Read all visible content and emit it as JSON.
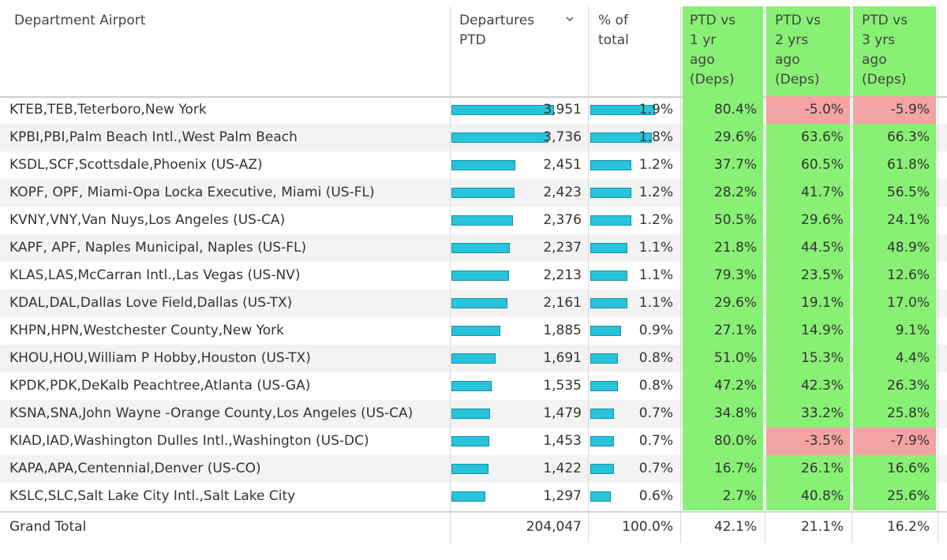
{
  "headers": {
    "airport": "Department Airport",
    "departures": "Departures\nPTD",
    "pct_total": "% of\ntotal",
    "vs1": "PTD vs\n1 yr\nago\n(Deps)",
    "vs2": "PTD vs\n2 yrs\nago\n(Deps)",
    "vs3": "PTD vs\n3 yrs\nago\n(Deps)"
  },
  "sort_icon": "chevron-down-icon",
  "colors": {
    "bar": "#27c4dc",
    "positive": "#88f074",
    "negative": "#f4a3a3"
  },
  "rows": [
    {
      "name": "KTEB,TEB,Teterboro,New York",
      "departures": "3,951",
      "departures_num": 3951,
      "pct": "1.9%",
      "pct_num": 1.9,
      "vs1": "80.4%",
      "vs2": "-5.0%",
      "vs3": "-5.9%",
      "vs1_neg": false,
      "vs2_neg": true,
      "vs3_neg": true
    },
    {
      "name": "KPBI,PBI,Palm Beach Intl.,West Palm Beach",
      "departures": "3,736",
      "departures_num": 3736,
      "pct": "1.8%",
      "pct_num": 1.8,
      "vs1": "29.6%",
      "vs2": "63.6%",
      "vs3": "66.3%",
      "vs1_neg": false,
      "vs2_neg": false,
      "vs3_neg": false
    },
    {
      "name": "KSDL,SCF,Scottsdale,Phoenix (US-AZ)",
      "departures": "2,451",
      "departures_num": 2451,
      "pct": "1.2%",
      "pct_num": 1.2,
      "vs1": "37.7%",
      "vs2": "60.5%",
      "vs3": "61.8%",
      "vs1_neg": false,
      "vs2_neg": false,
      "vs3_neg": false
    },
    {
      "name": "KOPF, OPF, Miami-Opa Locka Executive, Miami (US-FL)",
      "departures": "2,423",
      "departures_num": 2423,
      "pct": "1.2%",
      "pct_num": 1.2,
      "vs1": "28.2%",
      "vs2": "41.7%",
      "vs3": "56.5%",
      "vs1_neg": false,
      "vs2_neg": false,
      "vs3_neg": false
    },
    {
      "name": "KVNY,VNY,Van Nuys,Los Angeles (US-CA)",
      "departures": "2,376",
      "departures_num": 2376,
      "pct": "1.2%",
      "pct_num": 1.2,
      "vs1": "50.5%",
      "vs2": "29.6%",
      "vs3": "24.1%",
      "vs1_neg": false,
      "vs2_neg": false,
      "vs3_neg": false
    },
    {
      "name": "KAPF, APF, Naples Municipal, Naples (US-FL)",
      "departures": "2,237",
      "departures_num": 2237,
      "pct": "1.1%",
      "pct_num": 1.1,
      "vs1": "21.8%",
      "vs2": "44.5%",
      "vs3": "48.9%",
      "vs1_neg": false,
      "vs2_neg": false,
      "vs3_neg": false
    },
    {
      "name": "KLAS,LAS,McCarran Intl.,Las Vegas (US-NV)",
      "departures": "2,213",
      "departures_num": 2213,
      "pct": "1.1%",
      "pct_num": 1.1,
      "vs1": "79.3%",
      "vs2": "23.5%",
      "vs3": "12.6%",
      "vs1_neg": false,
      "vs2_neg": false,
      "vs3_neg": false
    },
    {
      "name": "KDAL,DAL,Dallas Love Field,Dallas (US-TX)",
      "departures": "2,161",
      "departures_num": 2161,
      "pct": "1.1%",
      "pct_num": 1.1,
      "vs1": "29.6%",
      "vs2": "19.1%",
      "vs3": "17.0%",
      "vs1_neg": false,
      "vs2_neg": false,
      "vs3_neg": false
    },
    {
      "name": "KHPN,HPN,Westchester County,New York",
      "departures": "1,885",
      "departures_num": 1885,
      "pct": "0.9%",
      "pct_num": 0.9,
      "vs1": "27.1%",
      "vs2": "14.9%",
      "vs3": "9.1%",
      "vs1_neg": false,
      "vs2_neg": false,
      "vs3_neg": false
    },
    {
      "name": "KHOU,HOU,William P Hobby,Houston (US-TX)",
      "departures": "1,691",
      "departures_num": 1691,
      "pct": "0.8%",
      "pct_num": 0.8,
      "vs1": "51.0%",
      "vs2": "15.3%",
      "vs3": "4.4%",
      "vs1_neg": false,
      "vs2_neg": false,
      "vs3_neg": false
    },
    {
      "name": "KPDK,PDK,DeKalb Peachtree,Atlanta (US-GA)",
      "departures": "1,535",
      "departures_num": 1535,
      "pct": "0.8%",
      "pct_num": 0.8,
      "vs1": "47.2%",
      "vs2": "42.3%",
      "vs3": "26.3%",
      "vs1_neg": false,
      "vs2_neg": false,
      "vs3_neg": false
    },
    {
      "name": "KSNA,SNA,John Wayne -Orange County,Los Angeles (US-CA)",
      "departures": "1,479",
      "departures_num": 1479,
      "pct": "0.7%",
      "pct_num": 0.7,
      "vs1": "34.8%",
      "vs2": "33.2%",
      "vs3": "25.8%",
      "vs1_neg": false,
      "vs2_neg": false,
      "vs3_neg": false
    },
    {
      "name": "KIAD,IAD,Washington Dulles Intl.,Washington (US-DC)",
      "departures": "1,453",
      "departures_num": 1453,
      "pct": "0.7%",
      "pct_num": 0.7,
      "vs1": "80.0%",
      "vs2": "-3.5%",
      "vs3": "-7.9%",
      "vs1_neg": false,
      "vs2_neg": true,
      "vs3_neg": true
    },
    {
      "name": "KAPA,APA,Centennial,Denver (US-CO)",
      "departures": "1,422",
      "departures_num": 1422,
      "pct": "0.7%",
      "pct_num": 0.7,
      "vs1": "16.7%",
      "vs2": "26.1%",
      "vs3": "16.6%",
      "vs1_neg": false,
      "vs2_neg": false,
      "vs3_neg": false
    },
    {
      "name": "KSLC,SLC,Salt Lake City Intl.,Salt Lake City",
      "departures": "1,297",
      "departures_num": 1297,
      "pct": "0.6%",
      "pct_num": 0.6,
      "vs1": "2.7%",
      "vs2": "40.8%",
      "vs3": "25.6%",
      "vs1_neg": false,
      "vs2_neg": false,
      "vs3_neg": false
    }
  ],
  "grand_total": {
    "label": "Grand Total",
    "departures": "204,047",
    "pct": "100.0%",
    "vs1": "42.1%",
    "vs2": "21.1%",
    "vs3": "16.2%"
  }
}
